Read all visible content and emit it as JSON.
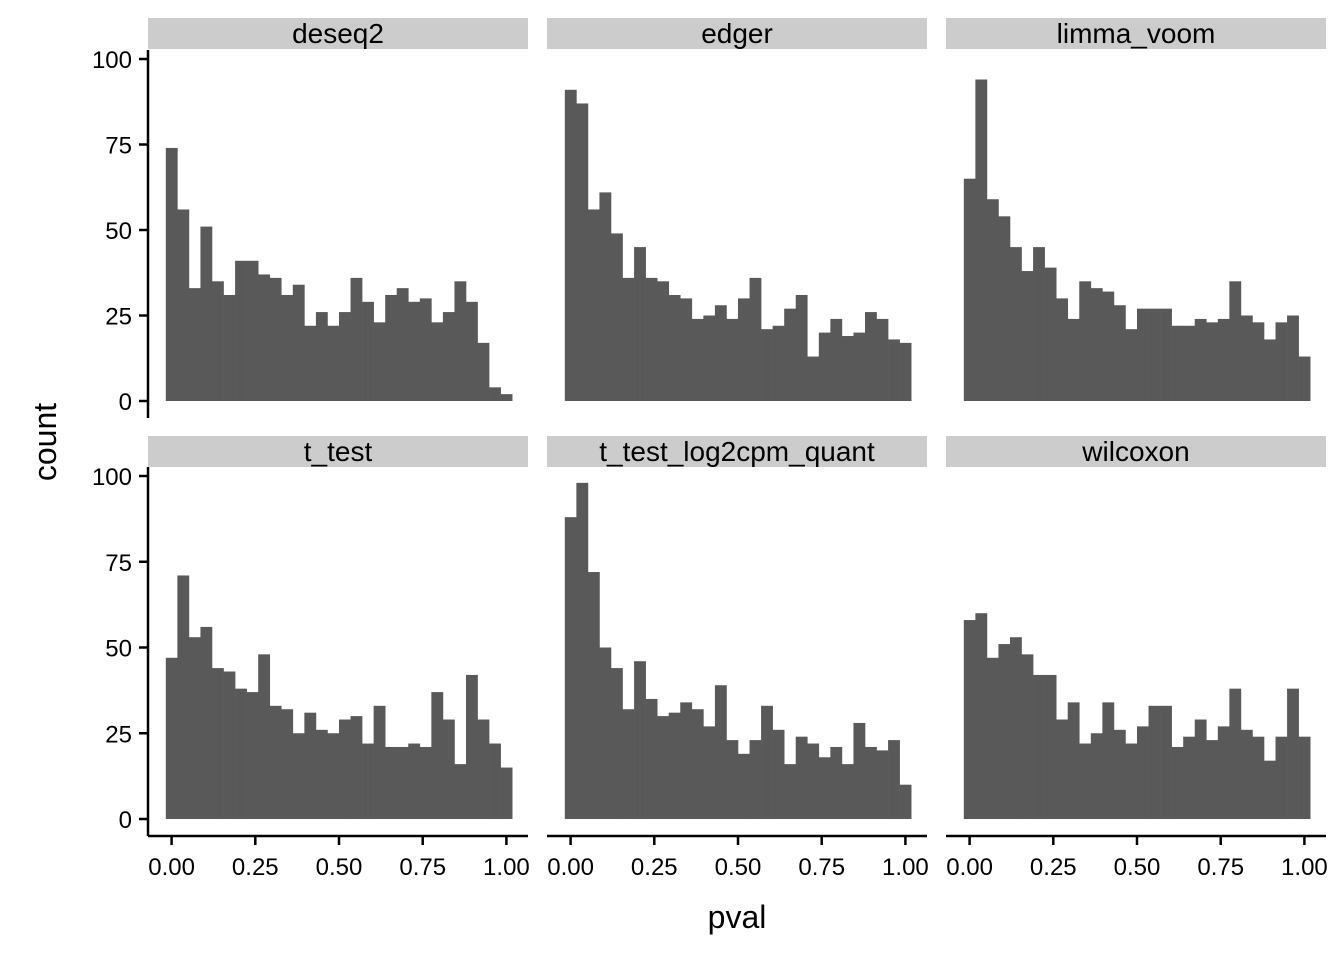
{
  "chart_data": {
    "type": "bar",
    "xlabel": "pval",
    "ylabel": "count",
    "xlim": [
      -0.0167,
      1.0167
    ],
    "ylim": [
      0,
      100
    ],
    "x_ticks": [
      0,
      0.25,
      0.5,
      0.75,
      1.0
    ],
    "x_tick_labels": [
      "0.00",
      "0.25",
      "0.50",
      "0.75",
      "1.00"
    ],
    "y_ticks": [
      0,
      25,
      50,
      75,
      100
    ],
    "y_tick_labels": [
      "0",
      "25",
      "50",
      "75",
      "100"
    ],
    "bins": 30,
    "bin_centers": [
      0,
      0.0345,
      0.069,
      0.1034,
      0.1379,
      0.1724,
      0.2069,
      0.2414,
      0.2759,
      0.3103,
      0.3448,
      0.3793,
      0.4138,
      0.4483,
      0.4828,
      0.5172,
      0.5517,
      0.5862,
      0.6207,
      0.6552,
      0.6897,
      0.7241,
      0.7586,
      0.7931,
      0.8276,
      0.8621,
      0.8966,
      0.931,
      0.9655,
      1.0
    ],
    "bar_color": "#595959",
    "strip_color": "#cccccc",
    "panels": [
      {
        "name": "deseq2",
        "counts": [
          74,
          56,
          33,
          51,
          35,
          31,
          41,
          41,
          37,
          36,
          31,
          34,
          22,
          26,
          22,
          26,
          36,
          29,
          23,
          31,
          33,
          29,
          30,
          23,
          26,
          35,
          29,
          17,
          4,
          2
        ]
      },
      {
        "name": "edger",
        "counts": [
          91,
          87,
          56,
          61,
          49,
          36,
          45,
          36,
          35,
          31,
          30,
          24,
          25,
          28,
          24,
          30,
          36,
          21,
          22,
          27,
          31,
          13,
          20,
          24,
          19,
          20,
          26,
          24,
          18,
          17
        ]
      },
      {
        "name": "limma_voom",
        "counts": [
          65,
          94,
          59,
          54,
          45,
          38,
          45,
          39,
          30,
          24,
          35,
          33,
          32,
          28,
          21,
          27,
          27,
          27,
          22,
          22,
          24,
          23,
          24,
          35,
          25,
          23,
          18,
          23,
          25,
          13
        ]
      },
      {
        "name": "t_test",
        "counts": [
          47,
          71,
          53,
          56,
          44,
          43,
          38,
          37,
          48,
          33,
          32,
          25,
          31,
          26,
          25,
          29,
          30,
          22,
          33,
          21,
          21,
          22,
          21,
          37,
          29,
          16,
          42,
          29,
          22,
          15
        ]
      },
      {
        "name": "t_test_log2cpm_quant",
        "counts": [
          88,
          98,
          72,
          50,
          44,
          32,
          46,
          35,
          30,
          31,
          34,
          32,
          27,
          39,
          23,
          19,
          23,
          33,
          26,
          16,
          24,
          22,
          18,
          21,
          16,
          28,
          21,
          20,
          23,
          10
        ]
      },
      {
        "name": "wilcoxon",
        "counts": [
          58,
          60,
          47,
          51,
          53,
          48,
          42,
          42,
          29,
          34,
          22,
          25,
          34,
          26,
          22,
          27,
          33,
          33,
          21,
          24,
          29,
          23,
          27,
          38,
          26,
          24,
          17,
          24,
          38,
          24
        ]
      }
    ]
  }
}
